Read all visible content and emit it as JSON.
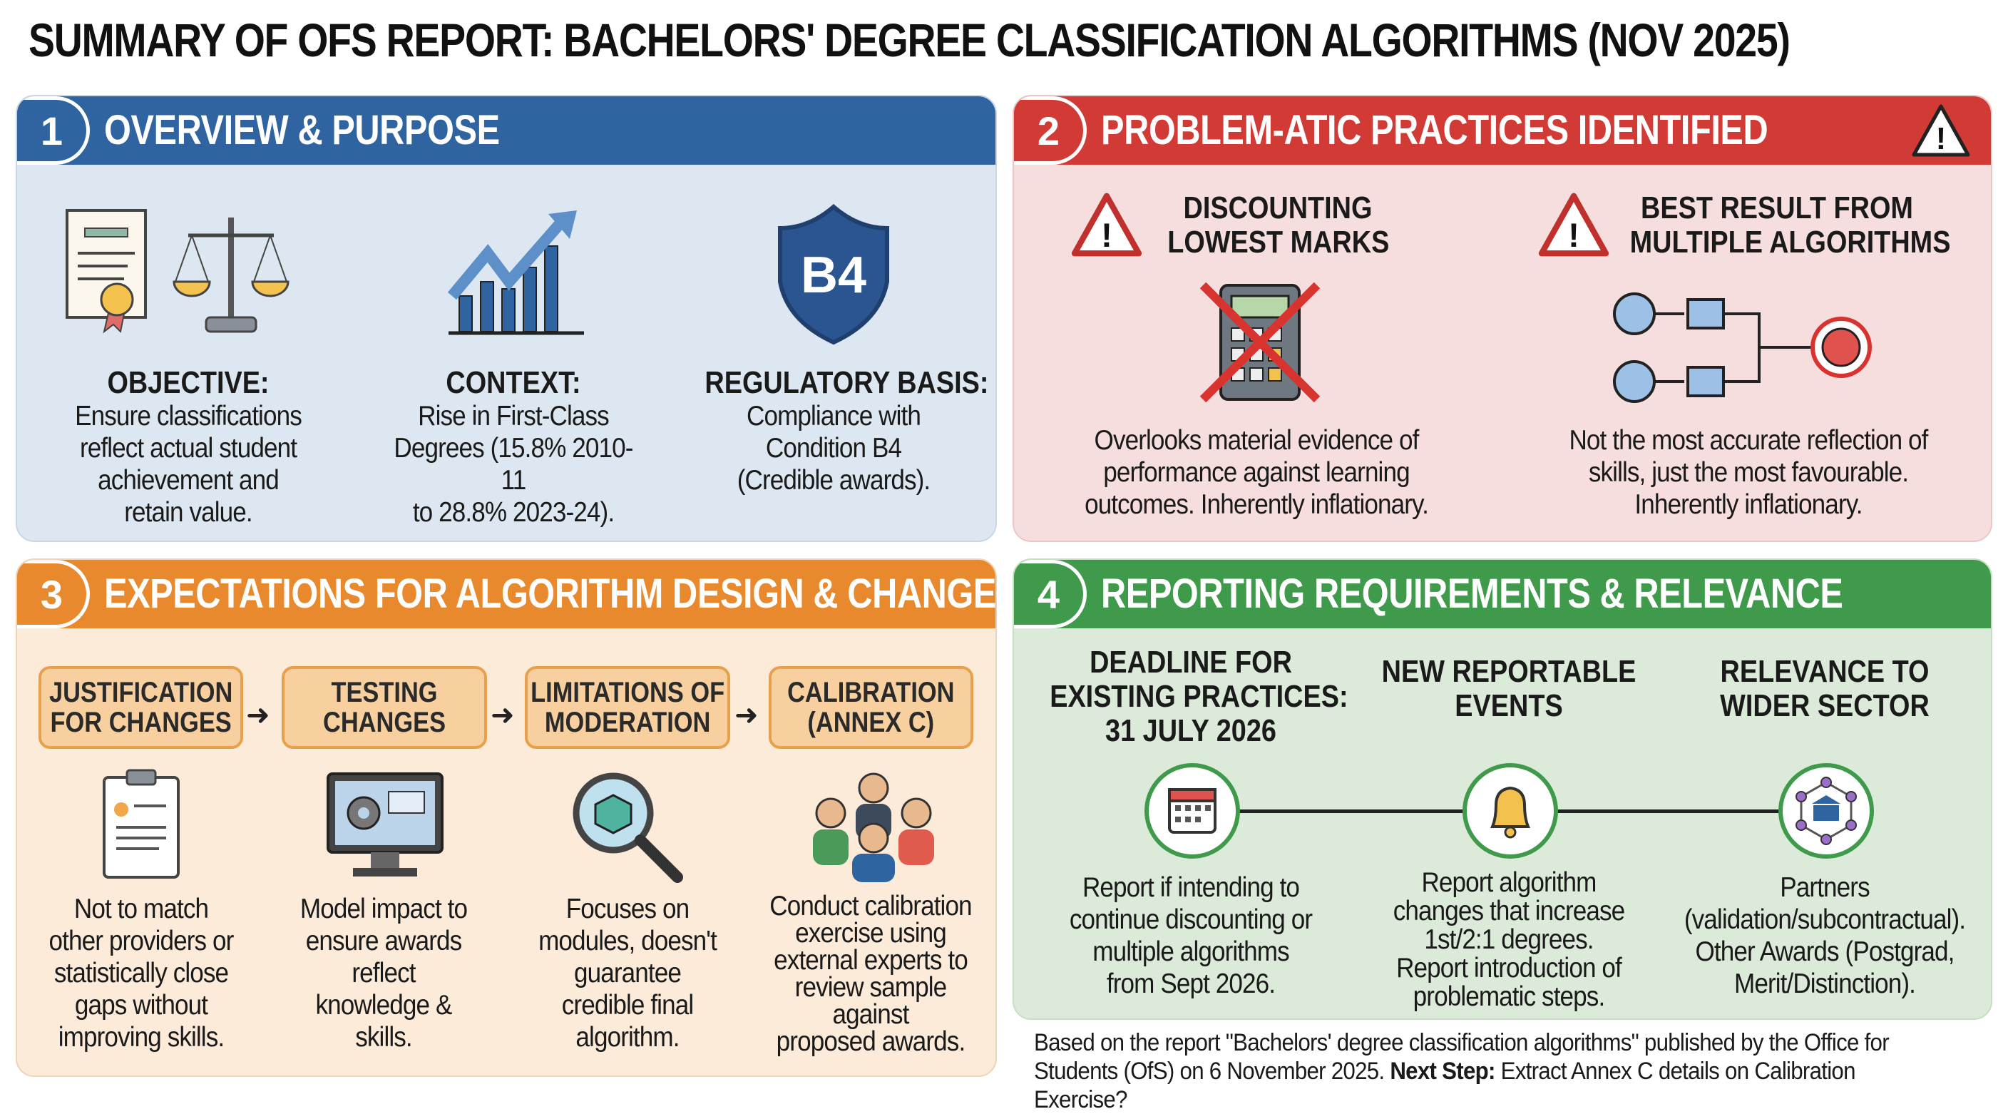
{
  "title": "SUMMARY OF OFS REPORT: BACHELORS' DEGREE CLASSIFICATION ALGORITHMS (NOV 2025)",
  "colors": {
    "blue": "#2f64a0",
    "red": "#d23a36",
    "orange": "#e9892e",
    "green": "#3f9a4c"
  },
  "panel1": {
    "number": "1",
    "title": "OVERVIEW & PURPOSE",
    "icons": [
      "certificate-icon",
      "scales-icon",
      "growth-chart-icon",
      "shield-b4-icon"
    ],
    "shield_text": "B4",
    "cols": [
      {
        "heading": "OBJECTIVE:",
        "lines": [
          "Ensure classifications",
          "reflect actual student",
          "achievement and",
          "retain value."
        ]
      },
      {
        "heading": "CONTEXT:",
        "lines": [
          "Rise in First-Class",
          "Degrees (15.8% 2010-11",
          "to 28.8% 2023-24)."
        ]
      },
      {
        "heading": "REGULATORY BASIS:",
        "lines": [
          "Compliance with",
          "Condition B4",
          "(Credible awards)."
        ]
      }
    ]
  },
  "panel2": {
    "number": "2",
    "title": "PROBLEM-ATIC PRACTICES IDENTIFIED",
    "icons": [
      "warning-icon",
      "crossed-calculator-icon",
      "algorithm-flow-icon"
    ],
    "cols": [
      {
        "heading": [
          "DISCOUNTING",
          "LOWEST MARKS"
        ],
        "lines": [
          "Overlooks material evidence of",
          "performance against learning",
          "outcomes. Inherently inflationary."
        ]
      },
      {
        "heading": [
          "BEST RESULT FROM",
          "MULTIPLE ALGORITHMS"
        ],
        "lines": [
          "Not the most accurate reflection of",
          "skills, just the most favourable.",
          "Inherently inflationary."
        ]
      }
    ]
  },
  "panel3": {
    "number": "3",
    "title": "EXPECTATIONS FOR ALGORITHM DESIGN & CHANGES",
    "icons": [
      "clipboard-icon",
      "monitor-gear-icon",
      "magnifier-cube-icon",
      "people-group-icon"
    ],
    "steps": [
      {
        "label": [
          "JUSTIFICATION",
          "FOR CHANGES"
        ],
        "lines": [
          "Not to match",
          "other providers or",
          "statistically close",
          "gaps without",
          "improving skills."
        ]
      },
      {
        "label": [
          "TESTING",
          "CHANGES"
        ],
        "lines": [
          "Model impact to",
          "ensure awards",
          "reflect",
          "knowledge &",
          "skills."
        ]
      },
      {
        "label": [
          "LIMITATIONS OF",
          "MODERATION"
        ],
        "lines": [
          "Focuses on",
          "modules, doesn't",
          "guarantee",
          "credible final",
          "algorithm."
        ]
      },
      {
        "label": [
          "CALIBRATION",
          "(ANNEX C)"
        ],
        "lines": [
          "Conduct calibration",
          "exercise using",
          "external experts to",
          "review sample",
          "against",
          "proposed awards."
        ]
      }
    ]
  },
  "panel4": {
    "number": "4",
    "title": "REPORTING REQUIREMENTS & RELEVANCE",
    "icons": [
      "calendar-icon",
      "bell-icon",
      "network-building-icon"
    ],
    "cols": [
      {
        "heading": [
          "DEADLINE FOR",
          "EXISTING PRACTICES:",
          "31 JULY 2026"
        ],
        "lines": [
          "Report if intending to",
          "continue discounting or",
          "multiple algorithms",
          "from Sept 2026."
        ]
      },
      {
        "heading": [
          "NEW REPORTABLE",
          "EVENTS"
        ],
        "lines": [
          "Report algorithm",
          "changes that increase",
          "1st/2:1 degrees.",
          "Report introduction of",
          "problematic steps."
        ]
      },
      {
        "heading": [
          "RELEVANCE TO",
          "WIDER SECTOR"
        ],
        "lines": [
          "Partners",
          "(validation/subcontractual).",
          "Other Awards (Postgrad,",
          "Merit/Distinction)."
        ]
      }
    ]
  },
  "footer": {
    "text": "Based on the report \"Bachelors' degree classification algorithms\" published by the Office for Students (OfS) on 6 November 2025. ",
    "next_label": "Next Step:",
    "next_text": " Extract Annex C details on Calibration Exercise?"
  }
}
